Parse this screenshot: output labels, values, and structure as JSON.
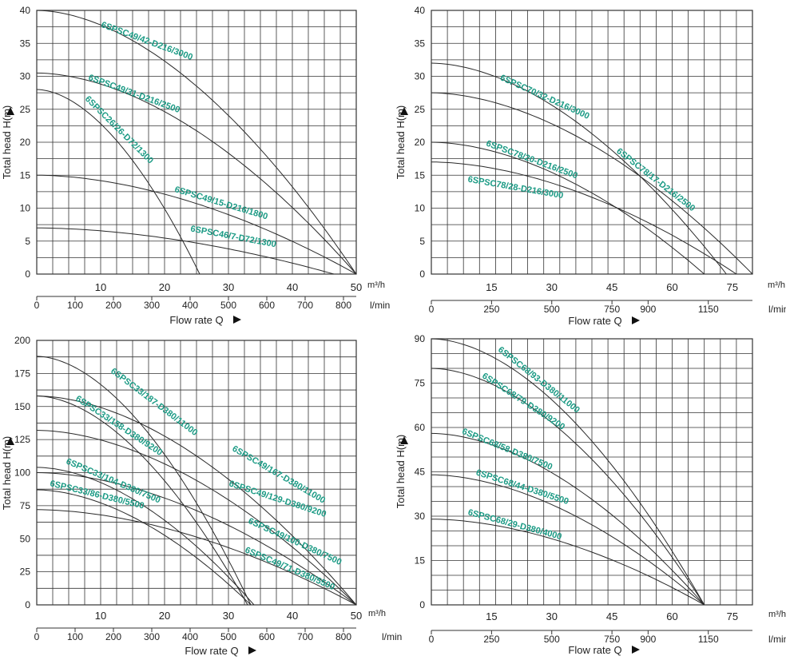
{
  "colors": {
    "grid": "#333333",
    "curve": "#2a2a2a",
    "label": "#1a9a84",
    "text": "#222222"
  },
  "chart_data": [
    {
      "type": "line",
      "panel": "top-left",
      "ylabel": "Total head H(m)",
      "xlabel": "Flow rate Q",
      "ylim": [
        0,
        40
      ],
      "yticks": [
        0,
        5,
        10,
        15,
        20,
        25,
        30,
        35,
        40
      ],
      "xlim": [
        0,
        50
      ],
      "x_unit": "m³/h",
      "xticks": [
        10,
        20,
        30,
        40,
        50
      ],
      "xticks_m3h": [
        "10",
        "20",
        "30",
        "40",
        "50"
      ],
      "lmin_unit": "l/min",
      "lmin_max": 833.33,
      "xticks_lmin": [
        0,
        100,
        200,
        300,
        400,
        500,
        600,
        700,
        800
      ],
      "series": [
        {
          "name": "6SPSC49/42-D216/3000",
          "shutoff_head": 40,
          "max_flow": 50,
          "label_at": [
            10,
            37.5
          ],
          "label_end": [
            25.5,
            32
          ]
        },
        {
          "name": "6SPSC49/31-D216/2500",
          "shutoff_head": 30.5,
          "max_flow": 50,
          "label_at": [
            8,
            29.5
          ],
          "label_end": [
            23.5,
            24
          ]
        },
        {
          "name": "6SPSC26/26-D72/1300",
          "shutoff_head": 28,
          "max_flow": 25.5,
          "label_at": [
            7.5,
            26.5
          ],
          "label_end": [
            20,
            14.5
          ]
        },
        {
          "name": "6SPSC49/15-D216/1800",
          "shutoff_head": 15,
          "max_flow": 50,
          "label_at": [
            21.5,
            12.5
          ],
          "label_end": [
            37,
            8
          ]
        },
        {
          "name": "6SPSC46/7-D72/1300",
          "shutoff_head": 7,
          "max_flow": 46.5,
          "label_at": [
            24,
            6.5
          ],
          "label_end": [
            40.5,
            3.5
          ]
        }
      ]
    },
    {
      "type": "line",
      "panel": "top-right",
      "ylabel": "Total head H(m)",
      "xlabel": "Flow rate Q",
      "ylim": [
        0,
        40
      ],
      "yticks": [
        0,
        5,
        10,
        15,
        20,
        25,
        30,
        35,
        40
      ],
      "xlim": [
        0,
        80
      ],
      "x_unit": "m³/h",
      "xticks": [
        15,
        30,
        45,
        60,
        75
      ],
      "xticks_m3h": [
        "15",
        "30",
        "45",
        "60",
        "75"
      ],
      "lmin_unit": "l/min",
      "lmin_max": 1333.33,
      "xticks_lmin": [
        0,
        250,
        500,
        750,
        900,
        1150
      ],
      "series": [
        {
          "name": "6SPSC70/32-D216/3000",
          "shutoff_head": 32,
          "max_flow": 73.5,
          "label_at": [
            17,
            29.5
          ],
          "label_end": [
            39,
            23.5
          ]
        },
        {
          "name": "6SPSC78/17-D216/2500",
          "shutoff_head": 27.5,
          "max_flow": 80,
          "label_at": [
            46,
            18.5
          ],
          "label_end": [
            66,
            9
          ]
        },
        {
          "name": "6SPSC78/20-D216/2500",
          "shutoff_head": 20,
          "max_flow": 68,
          "label_at": [
            13.5,
            19.5
          ],
          "label_end": [
            36,
            14.5
          ]
        },
        {
          "name": "6SPSC78/28-D216/3000",
          "shutoff_head": 17,
          "max_flow": 76,
          "label_at": [
            9,
            14
          ],
          "label_end": [
            32.5,
            11.5
          ]
        }
      ]
    },
    {
      "type": "line",
      "panel": "bottom-left",
      "ylabel": "Total head H(m)",
      "xlabel": "Flow rate Q",
      "ylim": [
        0,
        200
      ],
      "yticks": [
        0,
        25,
        50,
        75,
        100,
        125,
        150,
        175,
        200
      ],
      "xlim": [
        0,
        50
      ],
      "x_unit": "m³/h",
      "xticks": [
        10,
        20,
        30,
        40,
        50
      ],
      "xticks_m3h": [
        "10",
        "20",
        "30",
        "40",
        "50"
      ],
      "lmin_unit": "l/min",
      "lmin_max": 833.33,
      "xticks_lmin": [
        0,
        100,
        200,
        300,
        400,
        500,
        600,
        700,
        800
      ],
      "series": [
        {
          "name": "6SPSC33/187-D380/11000",
          "shutoff_head": 188,
          "max_flow": 33.5,
          "label_at": [
            11.5,
            176
          ],
          "label_end": [
            25.5,
            125
          ]
        },
        {
          "name": "6SPSC33/158-D380/9200",
          "shutoff_head": 158,
          "max_flow": 33,
          "label_at": [
            6,
            155
          ],
          "label_end": [
            20.5,
            109
          ]
        },
        {
          "name": "6SPSC49/167-D380/11000",
          "shutoff_head": 158,
          "max_flow": 50,
          "label_at": [
            30.5,
            117
          ],
          "label_end": [
            46.5,
            72
          ]
        },
        {
          "name": "6SPSC49/129-D380/9200",
          "shutoff_head": 132,
          "max_flow": 50,
          "label_at": [
            30,
            90
          ],
          "label_end": [
            46,
            65
          ]
        },
        {
          "name": "6SPSC33/104-D380/7500",
          "shutoff_head": 104,
          "max_flow": 34,
          "label_at": [
            4.5,
            107
          ],
          "label_end": [
            20.5,
            74
          ]
        },
        {
          "name": "6SPSC49/100-D380/7500",
          "shutoff_head": 100,
          "max_flow": 50,
          "label_at": [
            33,
            62
          ],
          "label_end": [
            47,
            31
          ]
        },
        {
          "name": "6SPSC33/86-D380/5500",
          "shutoff_head": 87,
          "max_flow": 33.5,
          "label_at": [
            2,
            90
          ],
          "label_end": [
            21.5,
            67
          ]
        },
        {
          "name": "6SPSC49/71-D380/5500",
          "shutoff_head": 72,
          "max_flow": 50,
          "label_at": [
            32.5,
            40
          ],
          "label_end": [
            47,
            10
          ]
        }
      ]
    },
    {
      "type": "line",
      "panel": "bottom-right",
      "ylabel": "Total head H(m)",
      "xlabel": "Flow rate Q",
      "ylim": [
        0,
        90
      ],
      "yticks": [
        0,
        15,
        30,
        45,
        60,
        75,
        90
      ],
      "xlim": [
        0,
        80
      ],
      "x_unit": "m³/h",
      "xticks": [
        15,
        30,
        45,
        60,
        75
      ],
      "xticks_m3h": [
        "15",
        "30",
        "45",
        "60",
        "75"
      ],
      "lmin_unit": "l/min",
      "lmin_max": 1333.33,
      "xticks_lmin": [
        0,
        250,
        500,
        750,
        900,
        1150
      ],
      "series": [
        {
          "name": "6SPSC68/93-D380/11000",
          "shutoff_head": 90,
          "max_flow": 68,
          "label_at": [
            16.5,
            86
          ],
          "label_end": [
            37,
            64
          ]
        },
        {
          "name": "6SPSC68/79-D380/9200",
          "shutoff_head": 80,
          "max_flow": 68,
          "label_at": [
            12.5,
            77
          ],
          "label_end": [
            34,
            58
          ]
        },
        {
          "name": "6SPSC68/58-D380/7500",
          "shutoff_head": 58,
          "max_flow": 68,
          "label_at": [
            7.5,
            58
          ],
          "label_end": [
            31,
            45
          ]
        },
        {
          "name": "6SPSC68/44-D380/5500",
          "shutoff_head": 44,
          "max_flow": 68,
          "label_at": [
            11,
            44
          ],
          "label_end": [
            34,
            34
          ]
        },
        {
          "name": "6SPSC68/29-D380/4000",
          "shutoff_head": 29,
          "max_flow": 68,
          "label_at": [
            9,
            30.5
          ],
          "label_end": [
            32.5,
            22
          ]
        }
      ]
    }
  ]
}
